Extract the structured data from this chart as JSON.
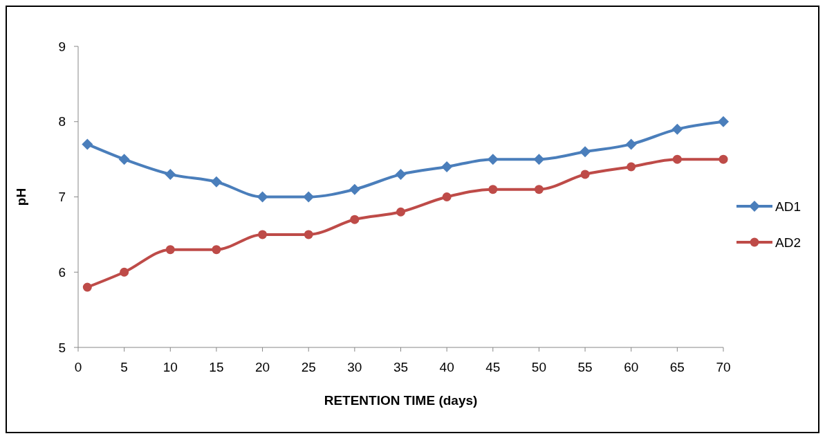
{
  "chart_data": {
    "type": "line",
    "xlabel": "RETENTION TIME  (days)",
    "ylabel": "pH",
    "x": [
      1,
      5,
      10,
      15,
      20,
      25,
      30,
      35,
      40,
      45,
      50,
      55,
      60,
      65,
      70
    ],
    "series": [
      {
        "name": "AD1",
        "color": "#4a7ebb",
        "marker": "diamond",
        "values": [
          7.7,
          7.5,
          7.3,
          7.2,
          7.0,
          7.0,
          7.1,
          7.3,
          7.4,
          7.5,
          7.5,
          7.6,
          7.7,
          7.9,
          8.0
        ]
      },
      {
        "name": "AD2",
        "color": "#be4b48",
        "marker": "circle",
        "values": [
          5.8,
          6.0,
          6.3,
          6.3,
          6.5,
          6.5,
          6.7,
          6.8,
          7.0,
          7.1,
          7.1,
          7.3,
          7.4,
          7.5,
          7.5
        ]
      }
    ],
    "xlim": [
      0,
      70
    ],
    "xticks": [
      0,
      5,
      10,
      15,
      20,
      25,
      30,
      35,
      40,
      45,
      50,
      55,
      60,
      65,
      70
    ],
    "ylim": [
      5,
      9
    ],
    "yticks": [
      5,
      6,
      7,
      8,
      9
    ],
    "grid": false,
    "legend": "right",
    "line_style": "solid"
  }
}
